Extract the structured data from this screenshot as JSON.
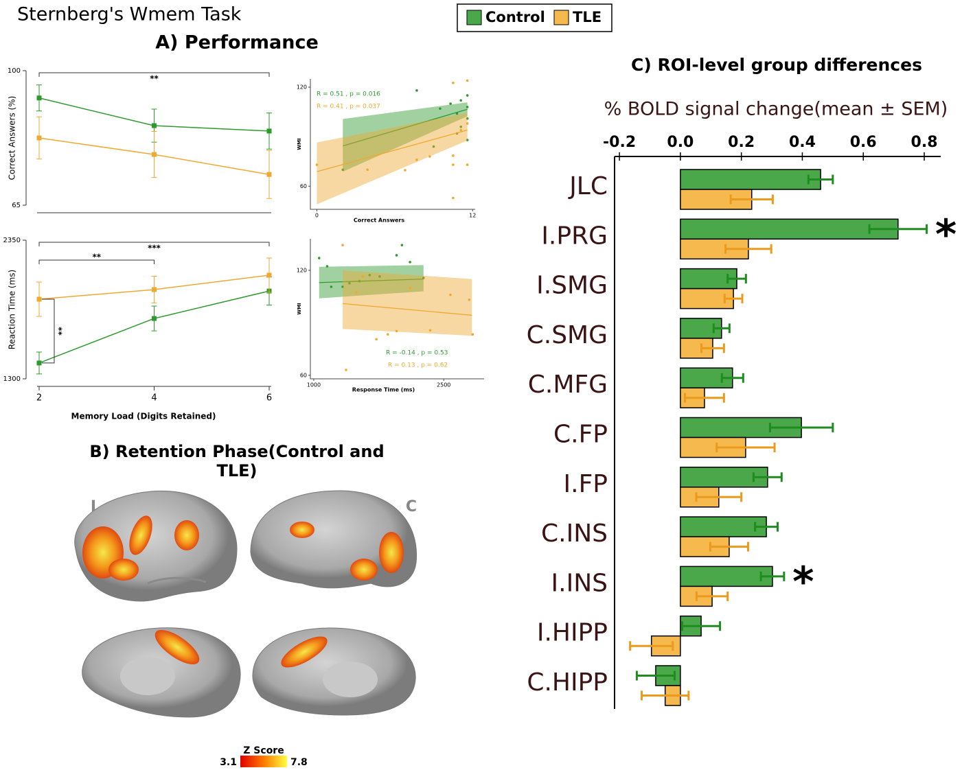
{
  "title": "Sternberg's Wmem Task",
  "legend": [
    {
      "name": "Control",
      "color": "#4aa84a"
    },
    {
      "name": "TLE",
      "color": "#f5b94e"
    }
  ],
  "panel_a_title": "A) Performance",
  "chart_data": [
    {
      "type": "line",
      "ylabel": "Correct Answers (%)",
      "x": [
        2,
        4,
        6
      ],
      "xlim": [
        2,
        6
      ],
      "ylim": [
        65,
        100
      ],
      "yticks": [
        65,
        100
      ],
      "series": [
        {
          "color": "#2e9a2e",
          "values": [
            92.9,
            85.7,
            84.3
          ],
          "errors": [
            3.4,
            4.3,
            4.7
          ]
        },
        {
          "color": "#f0a830",
          "values": [
            82.5,
            78.2,
            73.0
          ],
          "errors": [
            5.5,
            6.0,
            6.25
          ]
        }
      ],
      "brackets": [
        {
          "x": [
            2,
            6
          ],
          "label": "**"
        }
      ]
    },
    {
      "type": "line",
      "ylabel": "Reaction Time (ms)",
      "xlabel": "Memory Load (Digits Retained)",
      "x": [
        2,
        4,
        6
      ],
      "xlim": [
        2,
        6
      ],
      "ylim": [
        1300,
        2350
      ],
      "yticks": [
        1300,
        2350
      ],
      "xticks": [
        2,
        4,
        6
      ],
      "series": [
        {
          "color": "#2e9a2e",
          "values": [
            1420,
            1757,
            1965
          ],
          "errors": [
            83,
            94,
            107
          ]
        },
        {
          "color": "#f0a830",
          "values": [
            1903,
            1976,
            2085
          ],
          "errors": [
            130,
            101,
            130
          ]
        }
      ],
      "brackets": [
        {
          "x": [
            2,
            6
          ],
          "label": "***"
        },
        {
          "x": [
            2,
            4
          ],
          "label": "**"
        }
      ],
      "vertical_bracket": {
        "x": 2,
        "label": "**"
      }
    },
    {
      "type": "scatter",
      "xlabel": "Correct Answers",
      "ylabel": "WMI",
      "xlim": [
        -0.5,
        12.2
      ],
      "ylim": [
        46,
        125
      ],
      "xticks": [
        0,
        12
      ],
      "yticks": [
        60,
        120
      ],
      "series": [
        {
          "color": "#2e9a2e",
          "x": [
            2.0,
            7.7,
            9.5,
            10.3,
            10.8,
            11.1,
            11.6,
            11.6,
            11.6,
            11.1,
            10.8,
            11.6,
            9.0
          ],
          "values": [
            70,
            118,
            107,
            110,
            104,
            112,
            115,
            108,
            101,
            96,
            92,
            88,
            84
          ],
          "fit": {
            "x": [
              2,
              11.6
            ],
            "values": [
              84.4,
              106.6
            ],
            "lower": [
              68.8,
              102.4
            ],
            "upper": [
              100.7,
              110.8
            ]
          },
          "annotation": "R = 0.51 , p = 0.016"
        },
        {
          "color": "#f0a830",
          "x": [
            10.5,
            11.6,
            0,
            3.9,
            6.8,
            7.7,
            8.7,
            10.5,
            11.6,
            10.5,
            10.5,
            11.6,
            11.1
          ],
          "values": [
            122.6,
            124,
            73,
            70,
            69.7,
            76,
            78,
            73,
            73,
            52.9,
            78.5,
            98,
            94
          ],
          "fit": {
            "x": [
              0,
              11.6
            ],
            "values": [
              68.8,
              94
            ],
            "lower": [
              49,
              87.7
            ],
            "upper": [
              86.5,
              104.5
            ]
          },
          "annotation": "R = 0.41 , p = 0.037"
        }
      ]
    },
    {
      "type": "scatter",
      "xlabel": "Response Time (ms)",
      "ylabel": "WMI",
      "xlim": [
        961,
        2966
      ],
      "ylim": [
        58,
        138
      ],
      "xticks": [
        1000,
        2500
      ],
      "yticks": [
        60,
        120
      ],
      "series": [
        {
          "color": "#2e9a2e",
          "x": [
            1062,
            1155,
            1202,
            1334,
            1412,
            1645,
            1761,
            1956,
            2018,
            2111,
            2267,
            1528
          ],
          "values": [
            127,
            122.3,
            110.6,
            110.6,
            112.6,
            117.3,
            116.5,
            128.6,
            134.4,
            124.7,
            115.7,
            113.8
          ],
          "fit": {
            "x": [
              1062,
              2267
            ],
            "values": [
              113,
              115
            ],
            "lower": [
              104,
              108
            ],
            "upper": [
              122,
              123
            ]
          },
          "annotation": "R = -0.14 , p = 0.53"
        },
        {
          "color": "#f0a830",
          "x": [
            1334,
            1373,
            1567,
            1723,
            1855,
            1956,
            2111,
            2344,
            2577,
            2795,
            2834,
            1490
          ],
          "values": [
            134.4,
            63.1,
            116.5,
            80.6,
            83.4,
            85.3,
            109.9,
            85.7,
            106,
            103.2,
            83.4,
            107.5
          ],
          "fit": {
            "x": [
              1334,
              2826
            ],
            "values": [
              101,
              94.3
            ],
            "lower": [
              86.5,
              82.6
            ],
            "upper": [
              120,
              115
            ]
          },
          "annotation": "R = 0.13 , p = 0.62"
        }
      ]
    },
    {
      "type": "bar",
      "horizontal": true,
      "title": "C) ROI-level group differences",
      "xlabel": "% BOLD signal change(mean  ± SEM)",
      "categories": [
        "JLC",
        "I.PRG",
        "I.SMG",
        "C.SMG",
        "C.MFG",
        "C.FP",
        "I.FP",
        "C.INS",
        "I.INS",
        "I.HIPP",
        "C.HIPP"
      ],
      "xlim": [
        -0.216,
        0.854
      ],
      "xticks": [
        -0.2,
        {
          "value": 0,
          "label": "0.0"
        },
        0.2,
        0.4,
        0.6,
        0.8
      ],
      "series": [
        {
          "color": "#4aa84a",
          "error_color": "#1e8c1e",
          "values": [
            0.46,
            0.714,
            0.185,
            0.135,
            0.171,
            0.397,
            0.286,
            0.282,
            0.302,
            0.068,
            -0.081
          ],
          "errors": [
            0.04,
            0.094,
            0.03,
            0.026,
            0.035,
            0.103,
            0.046,
            0.037,
            0.038,
            0.062,
            0.062
          ]
        },
        {
          "color": "#f5b94e",
          "error_color": "#eb9a1c",
          "values": [
            0.234,
            0.223,
            0.174,
            0.106,
            0.079,
            0.214,
            0.126,
            0.16,
            0.104,
            -0.095,
            -0.05
          ],
          "errors": [
            0.069,
            0.075,
            0.029,
            0.037,
            0.064,
            0.095,
            0.074,
            0.062,
            0.051,
            0.07,
            0.077
          ]
        }
      ],
      "significance": [
        null,
        "*",
        null,
        null,
        null,
        null,
        null,
        null,
        "*",
        null,
        null
      ]
    }
  ],
  "panel_b": {
    "title": "B) Retention Phase(Control and TLE)",
    "hemisphere_labels": [
      "I",
      "C"
    ],
    "colorbar": {
      "title": "Z Score",
      "min": 3.1,
      "max": 7.8
    }
  }
}
